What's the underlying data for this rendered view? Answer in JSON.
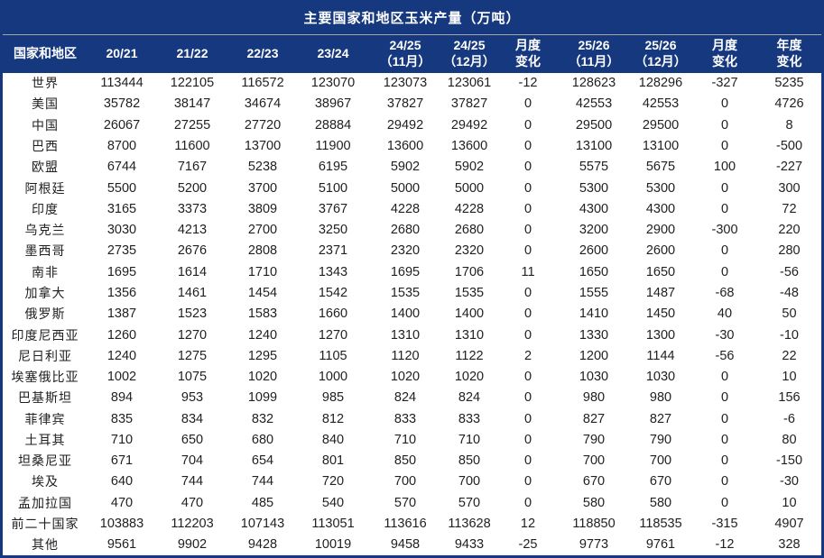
{
  "title": "主要国家和地区玉米产量（万吨）",
  "colors": {
    "header_bg": "#16387E",
    "header_text": "#FFFFFF",
    "positive_change": "#FF0000",
    "negative_change": "#00B050",
    "body_text": "#212121",
    "body_bg": "#FFFFFF"
  },
  "chart_data": {
    "type": "table",
    "title": "主要国家和地区玉米产量（万吨）",
    "columns": [
      "国家和地区",
      "20/21",
      "21/22",
      "22/23",
      "23/24",
      "24/25\n（11月）",
      "24/25\n（12月）",
      "月度\n变化",
      "25/26\n（11月）",
      "25/26\n（12月）",
      "月度\n变化",
      "年度\n变化"
    ],
    "change_value_indexes": [
      6,
      9,
      10
    ],
    "rows": [
      {
        "name": "世界",
        "values": [
          113444,
          122105,
          116572,
          123070,
          123073,
          123061,
          -12,
          128623,
          128296,
          -327,
          5235
        ]
      },
      {
        "name": "美国",
        "values": [
          35782,
          38147,
          34674,
          38967,
          37827,
          37827,
          0,
          42553,
          42553,
          0,
          4726
        ]
      },
      {
        "name": "中国",
        "values": [
          26067,
          27255,
          27720,
          28884,
          29492,
          29492,
          0,
          29500,
          29500,
          0,
          8
        ]
      },
      {
        "name": "巴西",
        "values": [
          8700,
          11600,
          13700,
          11900,
          13600,
          13600,
          0,
          13100,
          13100,
          0,
          -500
        ]
      },
      {
        "name": "欧盟",
        "values": [
          6744,
          7167,
          5238,
          6195,
          5902,
          5902,
          0,
          5575,
          5675,
          100,
          -227
        ]
      },
      {
        "name": "阿根廷",
        "values": [
          5500,
          5200,
          3700,
          5100,
          5000,
          5000,
          0,
          5300,
          5300,
          0,
          300
        ]
      },
      {
        "name": "印度",
        "values": [
          3165,
          3373,
          3809,
          3767,
          4228,
          4228,
          0,
          4300,
          4300,
          0,
          72
        ]
      },
      {
        "name": "乌克兰",
        "values": [
          3030,
          4213,
          2700,
          3250,
          2680,
          2680,
          0,
          3200,
          2900,
          -300,
          220
        ]
      },
      {
        "name": "墨西哥",
        "values": [
          2735,
          2676,
          2808,
          2371,
          2320,
          2320,
          0,
          2600,
          2600,
          0,
          280
        ]
      },
      {
        "name": "南非",
        "values": [
          1695,
          1614,
          1710,
          1343,
          1695,
          1706,
          11,
          1650,
          1650,
          0,
          -56
        ]
      },
      {
        "name": "加拿大",
        "values": [
          1356,
          1461,
          1454,
          1542,
          1535,
          1535,
          0,
          1555,
          1487,
          -68,
          -48
        ]
      },
      {
        "name": "俄罗斯",
        "values": [
          1387,
          1523,
          1583,
          1660,
          1400,
          1400,
          0,
          1410,
          1450,
          40,
          50
        ]
      },
      {
        "name": "印度尼西亚",
        "values": [
          1260,
          1270,
          1240,
          1270,
          1310,
          1310,
          0,
          1330,
          1300,
          -30,
          -10
        ]
      },
      {
        "name": "尼日利亚",
        "values": [
          1240,
          1275,
          1295,
          1105,
          1120,
          1122,
          2,
          1200,
          1144,
          -56,
          22
        ]
      },
      {
        "name": "埃塞俄比亚",
        "values": [
          1002,
          1075,
          1020,
          1000,
          1020,
          1020,
          0,
          1030,
          1030,
          0,
          10
        ]
      },
      {
        "name": "巴基斯坦",
        "values": [
          894,
          953,
          1099,
          985,
          824,
          824,
          0,
          980,
          980,
          0,
          156
        ]
      },
      {
        "name": "菲律宾",
        "values": [
          835,
          834,
          832,
          812,
          833,
          833,
          0,
          827,
          827,
          0,
          -6
        ]
      },
      {
        "name": "土耳其",
        "values": [
          710,
          650,
          680,
          840,
          710,
          710,
          0,
          790,
          790,
          0,
          80
        ]
      },
      {
        "name": "坦桑尼亚",
        "values": [
          671,
          704,
          654,
          801,
          850,
          850,
          0,
          700,
          700,
          0,
          -150
        ]
      },
      {
        "name": "埃及",
        "values": [
          640,
          744,
          744,
          720,
          700,
          700,
          0,
          670,
          670,
          0,
          -30
        ]
      },
      {
        "name": "孟加拉国",
        "values": [
          470,
          470,
          485,
          540,
          570,
          570,
          0,
          580,
          580,
          0,
          10
        ]
      },
      {
        "name": "前二十国家",
        "values": [
          103883,
          112203,
          107143,
          113051,
          113616,
          113628,
          12,
          118850,
          118535,
          -315,
          4907
        ]
      },
      {
        "name": "其他",
        "values": [
          9561,
          9902,
          9428,
          10019,
          9458,
          9433,
          -25,
          9773,
          9761,
          -12,
          328
        ]
      }
    ]
  }
}
